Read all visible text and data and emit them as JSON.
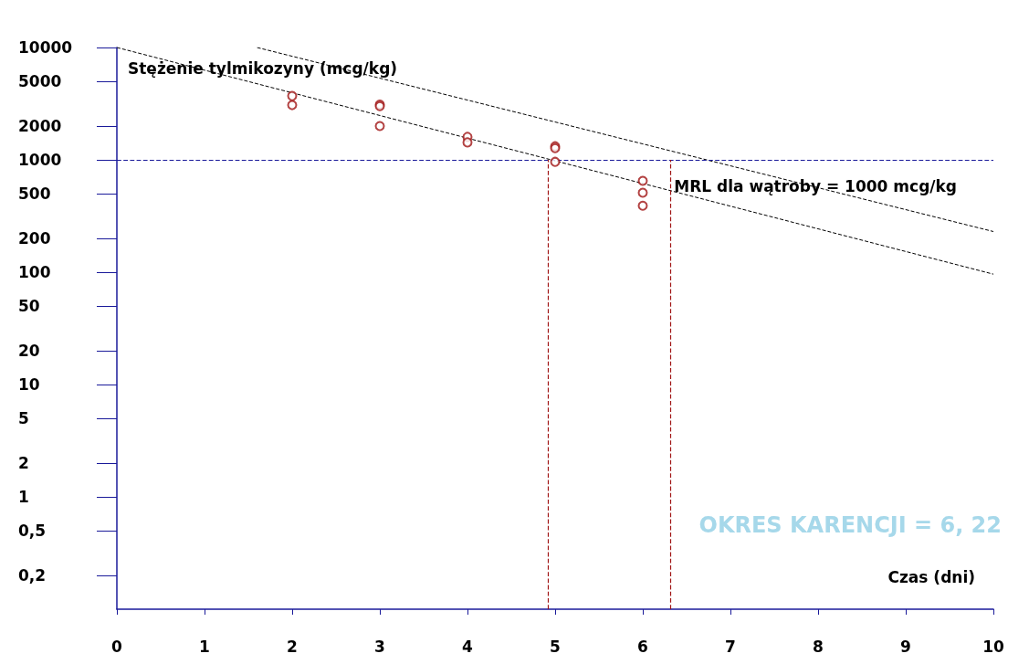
{
  "chart_data": {
    "type": "scatter",
    "xlabel": "Czas (dni)",
    "ylabel": "Stężenie tylmikozyny (mcg/kg)",
    "annotations": [
      "OKRES KARENCJI = 6, 22"
    ],
    "log": "y",
    "grid": false,
    "xlim": [
      0,
      10
    ],
    "xticks": [
      0,
      1,
      2,
      3,
      4,
      5,
      6,
      7,
      8,
      9,
      10
    ],
    "ylim": [
      0.1,
      10000
    ],
    "yticks": [
      10000,
      5000,
      2000,
      1000,
      500,
      200,
      100,
      50,
      20,
      10,
      5,
      2,
      1,
      {
        "value": 0.5,
        "label": "0,5"
      },
      {
        "value": 0.2,
        "label": "0,2"
      }
    ],
    "series": [
      {
        "marker": "circle",
        "color": "#a01414",
        "x": [
          2,
          2,
          3,
          3,
          3,
          4,
          4,
          5,
          5,
          5,
          6,
          6,
          6
        ],
        "values": [
          3700,
          3070,
          3100,
          3000,
          2000,
          1600,
          1430,
          1320,
          1270,
          960,
          650,
          510,
          390
        ]
      },
      {
        "type": "line",
        "color": "#000000",
        "line_style": "dashed",
        "x": [
          0,
          10
        ],
        "values": [
          10000,
          96
        ]
      },
      {
        "type": "line",
        "color": "#000000",
        "line_style": "dashed",
        "x": [
          1.6,
          10
        ],
        "values": [
          10000,
          230
        ]
      }
    ],
    "ref_lines": [
      {
        "axis": "y",
        "value": 1000,
        "label": "MRL dla wątroby = 1000 mcg/kg",
        "color": "#1a1a9a",
        "line_style": "dashed"
      },
      {
        "axis": "x",
        "value": 4.92,
        "color": "#a01414",
        "line_style": "dashed"
      },
      {
        "axis": "x",
        "value": 6.32,
        "color": "#a01414",
        "line_style": "dashed"
      }
    ]
  }
}
